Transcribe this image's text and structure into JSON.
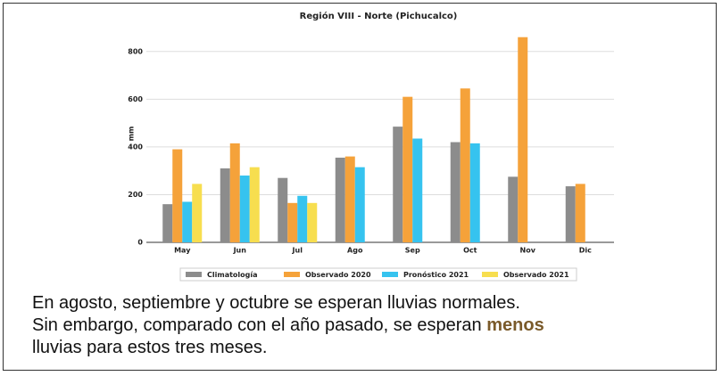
{
  "chart_data": {
    "type": "bar",
    "title": "Región VIII - Norte (Pichucalco)",
    "y_label": "mm",
    "categories": [
      "May",
      "Jun",
      "Jul",
      "Ago",
      "Sep",
      "Oct",
      "Nov",
      "Dic"
    ],
    "series": [
      {
        "name": "Climatología",
        "color": "#8c8c8c",
        "values": [
          160,
          310,
          270,
          355,
          485,
          420,
          275,
          235
        ]
      },
      {
        "name": "Observado 2020",
        "color": "#f5a23a",
        "values": [
          390,
          415,
          165,
          360,
          610,
          645,
          860,
          245
        ]
      },
      {
        "name": "Pronóstico 2021",
        "color": "#36c3ef",
        "values": [
          170,
          280,
          195,
          315,
          435,
          415,
          null,
          null
        ]
      },
      {
        "name": "Observado 2021",
        "color": "#f7de4f",
        "values": [
          245,
          315,
          165,
          null,
          null,
          null,
          null,
          null
        ]
      }
    ],
    "ylim": [
      0,
      900
    ],
    "yticks": [
      0,
      200,
      400,
      600,
      800
    ],
    "grid": true,
    "legend": "bottom"
  },
  "text": {
    "line1": "En agosto, septiembre y octubre se esperan lluvias normales.",
    "line2": "Sin embargo, comparado con el año pasado, se esperan",
    "emphasis": "menos",
    "line3": "lluvias para estos tres meses."
  }
}
